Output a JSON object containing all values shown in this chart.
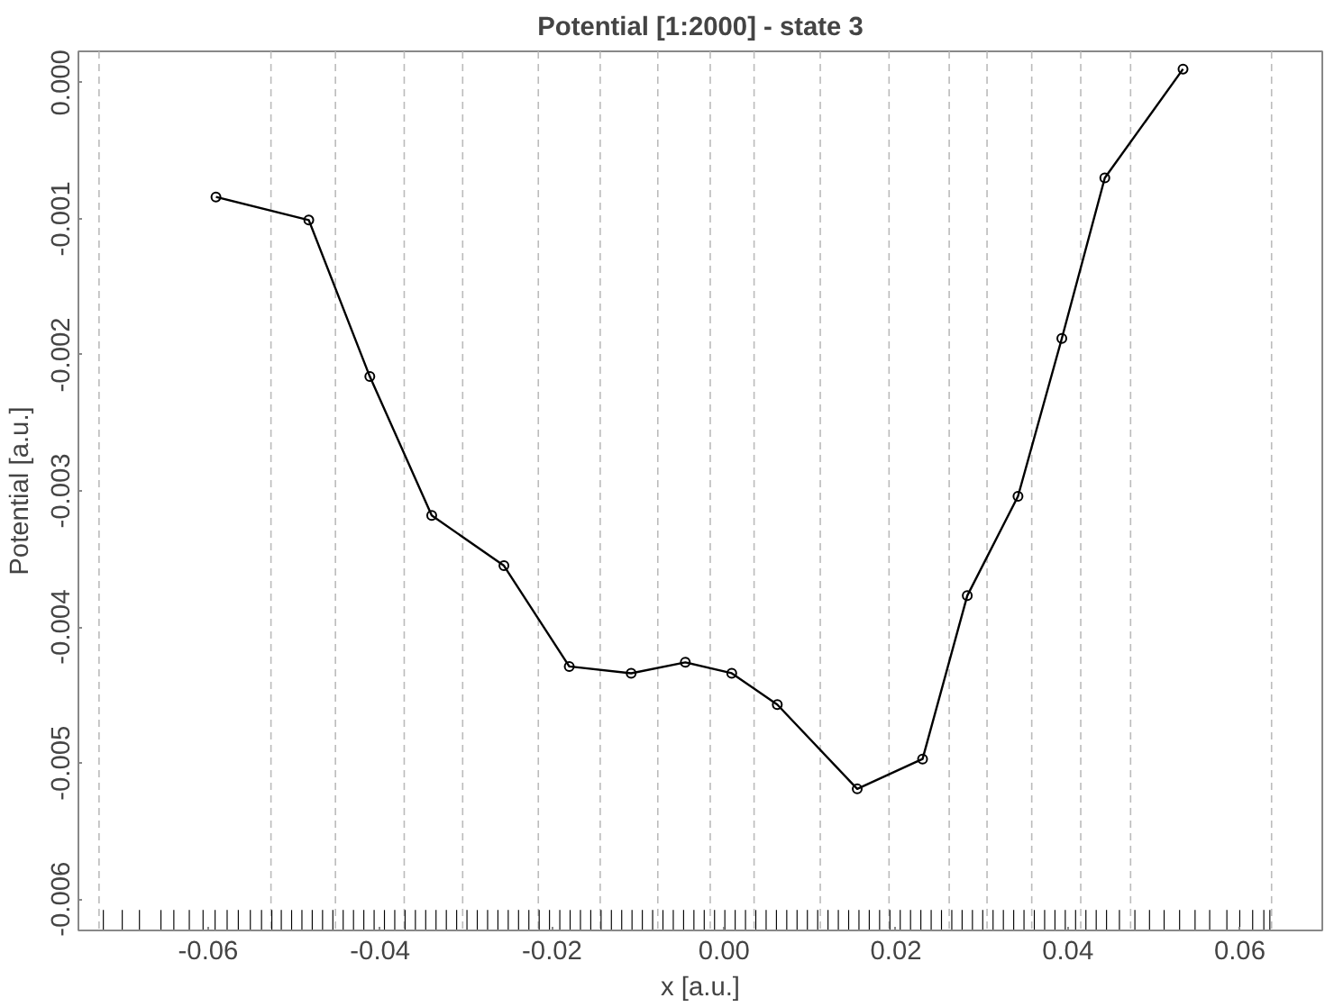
{
  "chart_data": {
    "type": "line",
    "title": "Potential [1:2000] - state 3",
    "xlabel": "x [a.u.]",
    "ylabel": "Potential [a.u.]",
    "xlim": [
      -0.0751,
      0.0696
    ],
    "ylim": [
      -0.00623,
      0.00023
    ],
    "xticks": [
      {
        "value": -0.06,
        "label": "-0.06"
      },
      {
        "value": -0.04,
        "label": "-0.04"
      },
      {
        "value": -0.02,
        "label": "-0.02"
      },
      {
        "value": 0,
        "label": "0.00"
      },
      {
        "value": 0.02,
        "label": "0.02"
      },
      {
        "value": 0.04,
        "label": "0.04"
      },
      {
        "value": 0.06,
        "label": "0.06"
      }
    ],
    "yticks": [
      {
        "value": 0,
        "label": "0.000"
      },
      {
        "value": -0.001,
        "label": "-0.001"
      },
      {
        "value": -0.002,
        "label": "-0.002"
      },
      {
        "value": -0.003,
        "label": "-0.003"
      },
      {
        "value": -0.004,
        "label": "-0.004"
      },
      {
        "value": -0.005,
        "label": "-0.005"
      },
      {
        "value": -0.006,
        "label": "-0.006"
      }
    ],
    "grid": false,
    "marker": "circle",
    "line_style": "solid",
    "series": [
      {
        "color": "#000000",
        "x": [
          -0.0591,
          -0.0483,
          -0.0412,
          -0.034,
          -0.0256,
          -0.018,
          -0.0108,
          -0.0045,
          0.0009,
          0.0062,
          0.0155,
          0.0231,
          0.0283,
          0.0342,
          0.0393,
          0.0443,
          0.0534
        ],
        "values": [
          -0.00084,
          -0.00101,
          -0.00216,
          -0.00318,
          -0.00355,
          -0.00429,
          -0.00434,
          -0.00426,
          -0.00434,
          -0.00457,
          -0.00519,
          -0.00497,
          -0.00377,
          -0.00304,
          -0.00188,
          -0.0007,
          0.0001
        ]
      },
      {
        "type": "bar",
        "color": "#000000",
        "x": [
          -0.0722,
          -0.07,
          -0.068,
          -0.0655,
          -0.064,
          -0.0622,
          -0.0606,
          -0.0592,
          -0.0578,
          -0.0565,
          -0.0551,
          -0.0538,
          -0.0526,
          -0.0515,
          -0.0503,
          -0.0491,
          -0.0479,
          -0.0467,
          -0.0455,
          -0.0443,
          -0.0431,
          -0.0419,
          -0.0407,
          -0.0395,
          -0.0383,
          -0.0371,
          -0.0359,
          -0.0347,
          -0.0335,
          -0.0323,
          -0.0311,
          -0.0299,
          -0.0287,
          -0.0275,
          -0.0263,
          -0.0251,
          -0.0239,
          -0.0227,
          -0.0215,
          -0.0203,
          -0.0191,
          -0.0179,
          -0.0167,
          -0.0155,
          -0.0143,
          -0.0131,
          -0.0119,
          -0.0107,
          -0.0095,
          -0.0083,
          -0.0071,
          -0.0059,
          -0.0047,
          -0.0035,
          -0.0023,
          -0.0011,
          0.0001,
          0.0013,
          0.0025,
          0.0037,
          0.0049,
          0.0061,
          0.0073,
          0.0085,
          0.0097,
          0.0109,
          0.0121,
          0.0133,
          0.0145,
          0.0157,
          0.0169,
          0.0181,
          0.0193,
          0.0205,
          0.0217,
          0.0229,
          0.0241,
          0.0253,
          0.0265,
          0.0277,
          0.0289,
          0.0301,
          0.0313,
          0.0325,
          0.0337,
          0.0349,
          0.0361,
          0.0373,
          0.0385,
          0.0397,
          0.0409,
          0.0421,
          0.0433,
          0.0445,
          0.046,
          0.0478,
          0.0495,
          0.0512,
          0.053,
          0.0548,
          0.0565,
          0.0585,
          0.06,
          0.0615,
          0.0628,
          0.0635
        ],
        "base": [
          -0.00623,
          -0.00623,
          -0.00623,
          -0.00623,
          -0.00623,
          -0.00623,
          -0.00623,
          -0.00623,
          -0.00623,
          -0.00623,
          -0.00623,
          -0.00623,
          -0.00623,
          -0.00623,
          -0.00623,
          -0.00623,
          -0.00623,
          -0.00623,
          -0.00623,
          -0.00623,
          -0.00623,
          -0.00623,
          -0.00623,
          -0.00623,
          -0.00623,
          -0.00623,
          -0.00623,
          -0.00623,
          -0.00623,
          -0.00623,
          -0.00623,
          -0.00623,
          -0.00623,
          -0.00623,
          -0.00623,
          -0.00623,
          -0.00623,
          -0.00623,
          -0.00623,
          -0.00623,
          -0.00623,
          -0.00623,
          -0.00623,
          -0.00623,
          -0.00623,
          -0.00623,
          -0.00623,
          -0.00623,
          -0.00623,
          -0.00623,
          -0.00623,
          -0.00623,
          -0.00623,
          -0.00623,
          -0.00623,
          -0.00623,
          -0.00623,
          -0.00623,
          -0.00623,
          -0.00623,
          -0.00623,
          -0.00623,
          -0.00623,
          -0.00623,
          -0.00623,
          -0.00623,
          -0.00623,
          -0.00623,
          -0.00623,
          -0.00623,
          -0.00623,
          -0.00623,
          -0.00623,
          -0.00623,
          -0.00623,
          -0.00623,
          -0.00623,
          -0.00623,
          -0.00623,
          -0.00623,
          -0.00623,
          -0.00623,
          -0.00623,
          -0.00623,
          -0.00623,
          -0.00623,
          -0.00623,
          -0.00623,
          -0.00623,
          -0.00623,
          -0.00623,
          -0.00623,
          -0.00623,
          -0.00623,
          -0.00623,
          -0.00623,
          -0.00623,
          -0.00623,
          -0.00623,
          -0.00623,
          -0.00623,
          -0.00623,
          -0.00623,
          -0.00623,
          -0.00623,
          -0.00623
        ],
        "values": [
          0.00015,
          0.00015,
          0.00015,
          0.00015,
          0.00015,
          0.00015,
          0.00015,
          0.00015,
          0.00015,
          0.00015,
          0.00015,
          0.00015,
          0.00015,
          0.00015,
          0.00015,
          0.00015,
          0.00015,
          0.00015,
          0.00015,
          0.00015,
          0.00015,
          0.00015,
          0.00015,
          0.00015,
          0.00015,
          0.00015,
          0.00015,
          0.00015,
          0.00015,
          0.00015,
          0.00015,
          0.00015,
          0.00015,
          0.00015,
          0.00015,
          0.00015,
          0.00015,
          0.00015,
          0.00015,
          0.00015,
          0.00015,
          0.00015,
          0.00015,
          0.00015,
          0.00015,
          0.00015,
          0.00015,
          0.00015,
          0.00015,
          0.00015,
          0.00015,
          0.00015,
          0.00015,
          0.00015,
          0.00015,
          0.00015,
          0.00015,
          0.00015,
          0.00015,
          0.00015,
          0.00015,
          0.00015,
          0.00015,
          0.00015,
          0.00015,
          0.00015,
          0.00015,
          0.00015,
          0.00015,
          0.00015,
          0.00015,
          0.00015,
          0.00015,
          0.00015,
          0.00015,
          0.00015,
          0.00015,
          0.00015,
          0.00015,
          0.00015,
          0.00015,
          0.00015,
          0.00015,
          0.00015,
          0.00015,
          0.00015,
          0.00015,
          0.00015,
          0.00015,
          0.00015,
          0.00015,
          0.00015,
          0.00015,
          0.00015,
          0.00015,
          0.00015,
          0.00015,
          0.00015,
          0.00015,
          0.00015,
          0.00015,
          0.00015,
          0.00015,
          0.00015,
          0.00015,
          0.00015
        ]
      }
    ],
    "ref_lines": [
      {
        "axis": "x",
        "value": -0.0727,
        "color": "#bbbbbb",
        "line_style": "dashed"
      },
      {
        "axis": "x",
        "value": -0.0527,
        "color": "#bbbbbb",
        "line_style": "dashed"
      },
      {
        "axis": "x",
        "value": -0.0452,
        "color": "#bbbbbb",
        "line_style": "dashed"
      },
      {
        "axis": "x",
        "value": -0.0372,
        "color": "#bbbbbb",
        "line_style": "dashed"
      },
      {
        "axis": "x",
        "value": -0.0304,
        "color": "#bbbbbb",
        "line_style": "dashed"
      },
      {
        "axis": "x",
        "value": -0.0216,
        "color": "#bbbbbb",
        "line_style": "dashed"
      },
      {
        "axis": "x",
        "value": -0.0144,
        "color": "#bbbbbb",
        "line_style": "dashed"
      },
      {
        "axis": "x",
        "value": -0.0077,
        "color": "#bbbbbb",
        "line_style": "dashed"
      },
      {
        "axis": "x",
        "value": -0.0016,
        "color": "#bbbbbb",
        "line_style": "dashed"
      },
      {
        "axis": "x",
        "value": 0.0035,
        "color": "#bbbbbb",
        "line_style": "dashed"
      },
      {
        "axis": "x",
        "value": 0.0112,
        "color": "#bbbbbb",
        "line_style": "dashed"
      },
      {
        "axis": "x",
        "value": 0.0192,
        "color": "#bbbbbb",
        "line_style": "dashed"
      },
      {
        "axis": "x",
        "value": 0.0262,
        "color": "#bbbbbb",
        "line_style": "dashed"
      },
      {
        "axis": "x",
        "value": 0.0306,
        "color": "#bbbbbb",
        "line_style": "dashed"
      },
      {
        "axis": "x",
        "value": 0.0358,
        "color": "#bbbbbb",
        "line_style": "dashed"
      },
      {
        "axis": "x",
        "value": 0.0415,
        "color": "#bbbbbb",
        "line_style": "dashed"
      },
      {
        "axis": "x",
        "value": 0.0473,
        "color": "#bbbbbb",
        "line_style": "dashed"
      },
      {
        "axis": "x",
        "value": 0.0637,
        "color": "#bbbbbb",
        "line_style": "dashed"
      }
    ]
  }
}
